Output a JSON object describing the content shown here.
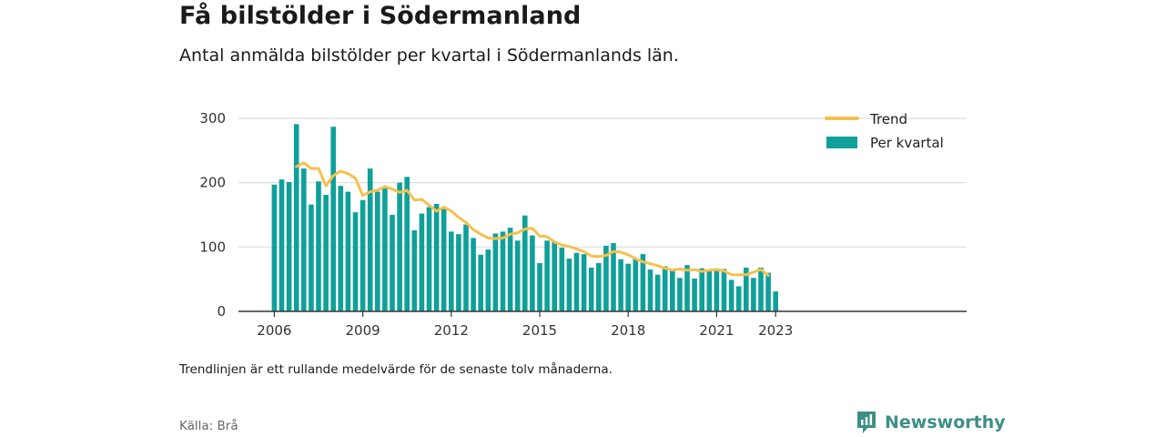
{
  "header": {
    "title": "Få bilstölder i Södermanland",
    "subtitle": "Antal anmälda bilstölder per kvartal i Södermanlands län."
  },
  "footer": {
    "note": "Trendlinjen är ett rullande medelvärde för de senaste tolv månaderna.",
    "source": "Källa: Brå",
    "brand": "Newsworthy"
  },
  "colors": {
    "bar": "#0fa099",
    "trend": "#f5c04f",
    "grid": "#dddddd",
    "axis": "#333333",
    "brand": "#3d8f86"
  },
  "chart_data": {
    "type": "bar",
    "x_start": "2006 Q1",
    "x_tick_labels": [
      "2006",
      "2009",
      "2012",
      "2015",
      "2018",
      "2021",
      "2023"
    ],
    "y_ticks": [
      0,
      100,
      200,
      300
    ],
    "ylim": [
      0,
      310
    ],
    "grid": true,
    "legend_position": "top-right",
    "series": [
      {
        "name": "Per kvartal",
        "kind": "bar",
        "values": [
          197,
          205,
          201,
          291,
          222,
          166,
          202,
          181,
          287,
          195,
          186,
          154,
          173,
          222,
          186,
          194,
          150,
          200,
          209,
          126,
          152,
          162,
          167,
          161,
          124,
          120,
          135,
          114,
          88,
          96,
          121,
          124,
          130,
          110,
          149,
          118,
          75,
          110,
          109,
          99,
          82,
          91,
          89,
          68,
          75,
          102,
          106,
          81,
          74,
          82,
          89,
          65,
          57,
          70,
          65,
          52,
          72,
          51,
          67,
          65,
          63,
          66,
          49,
          39,
          68,
          52,
          68,
          60,
          31
        ]
      },
      {
        "name": "Trend",
        "kind": "line",
        "start_index": 3,
        "values": [
          225,
          231,
          222,
          222,
          195,
          211,
          218,
          214,
          207,
          180,
          186,
          188,
          194,
          190,
          185,
          188,
          173,
          174,
          165,
          156,
          162,
          156,
          146,
          138,
          127,
          120,
          114,
          113,
          114,
          120,
          122,
          128,
          129,
          117,
          116,
          108,
          103,
          101,
          97,
          93,
          86,
          85,
          87,
          93,
          92,
          88,
          82,
          77,
          74,
          71,
          67,
          64,
          66,
          64,
          65,
          62,
          64,
          65,
          63,
          57,
          57,
          57,
          61,
          65,
          56
        ]
      }
    ]
  }
}
